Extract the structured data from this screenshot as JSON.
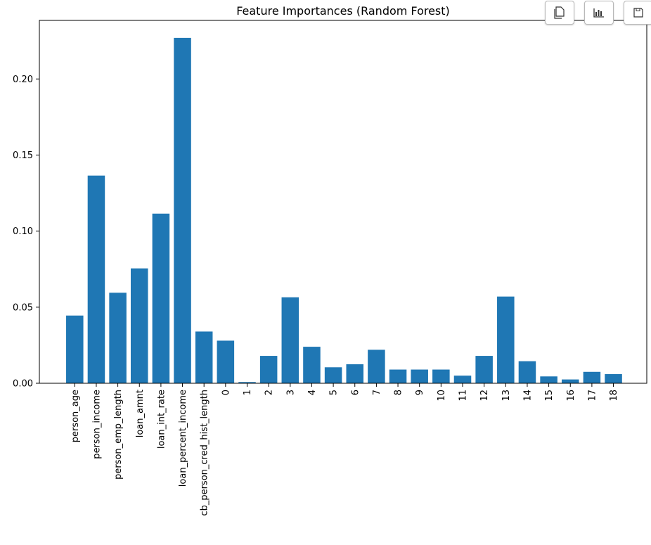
{
  "chart_data": {
    "type": "bar",
    "title": "Feature Importances (Random Forest)",
    "xlabel": "",
    "ylabel": "",
    "categories": [
      "person_age",
      "person_income",
      "person_emp_length",
      "loan_amnt",
      "loan_int_rate",
      "loan_percent_income",
      "cb_person_cred_hist_length",
      "0",
      "1",
      "2",
      "3",
      "4",
      "5",
      "6",
      "7",
      "8",
      "9",
      "10",
      "11",
      "12",
      "13",
      "14",
      "15",
      "16",
      "17",
      "18"
    ],
    "values": [
      0.0445,
      0.1365,
      0.0595,
      0.0755,
      0.1115,
      0.227,
      0.034,
      0.028,
      0.0008,
      0.018,
      0.0565,
      0.024,
      0.0105,
      0.0125,
      0.022,
      0.009,
      0.009,
      0.009,
      0.005,
      0.018,
      0.057,
      0.0145,
      0.0045,
      0.0025,
      0.0075,
      0.006
    ],
    "ylim": [
      0,
      0.2385
    ],
    "yticks": [
      0.0,
      0.05,
      0.1,
      0.15,
      0.2
    ],
    "ytick_labels": [
      "0.00",
      "0.05",
      "0.10",
      "0.15",
      "0.20"
    ],
    "bar_color": "#1f77b4",
    "grid": false,
    "legend": "none"
  },
  "toolbar": {
    "buttons": [
      {
        "name": "copy-icon"
      },
      {
        "name": "chart-icon"
      },
      {
        "name": "save-icon"
      }
    ]
  }
}
